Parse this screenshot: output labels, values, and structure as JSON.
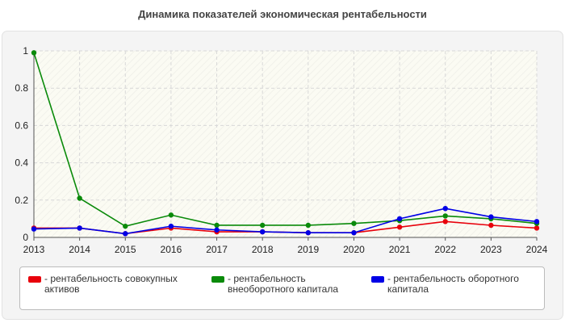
{
  "chart_data": {
    "type": "line",
    "title": "Динамика показателей экономическая рентабельности",
    "x": [
      "2013",
      "2014",
      "2015",
      "2016",
      "2017",
      "2018",
      "2019",
      "2020",
      "2021",
      "2022",
      "2023",
      "2024"
    ],
    "ylim": [
      0,
      1
    ],
    "yticks": [
      "0",
      "0.2",
      "0.4",
      "0.6",
      "0.8",
      "1"
    ],
    "grid": true,
    "legend_position": "bottom",
    "series": [
      {
        "name": "рентабельность совокупных активов",
        "color": "#e8000b",
        "values": [
          0.05,
          0.05,
          0.02,
          0.05,
          0.03,
          0.03,
          0.025,
          0.025,
          0.055,
          0.085,
          0.065,
          0.05
        ]
      },
      {
        "name": "рентабельность внеоборотного капитала",
        "color": "#0a8a0a",
        "values": [
          0.99,
          0.21,
          0.06,
          0.12,
          0.065,
          0.065,
          0.065,
          0.075,
          0.09,
          0.115,
          0.1,
          0.075
        ]
      },
      {
        "name": "рентабельность оборотного капитала",
        "color": "#0000e6",
        "values": [
          0.045,
          0.05,
          0.02,
          0.06,
          0.04,
          0.03,
          0.025,
          0.025,
          0.1,
          0.155,
          0.11,
          0.085
        ]
      }
    ]
  },
  "legend": {
    "prefix": "-",
    "items": [
      {
        "label": "рентабельность совокупных активов",
        "color": "#e8000b"
      },
      {
        "label": "рентабельность внеоборотного капитала",
        "color": "#0a8a0a"
      },
      {
        "label": "рентабельность оборотного капитала",
        "color": "#0000e6"
      }
    ]
  }
}
